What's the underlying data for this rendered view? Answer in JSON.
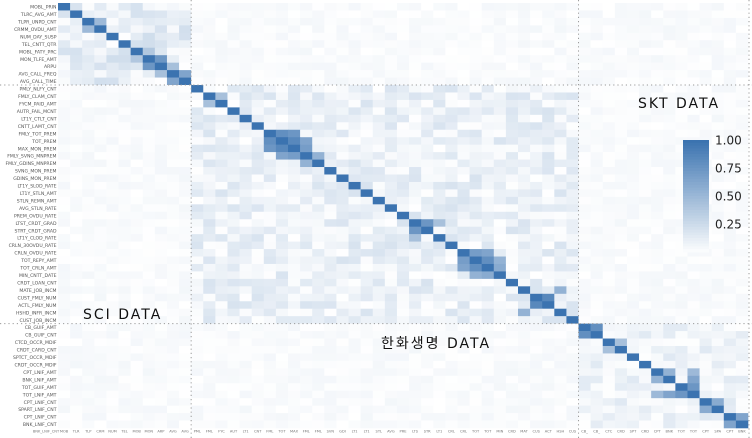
{
  "chart_data": {
    "type": "heatmap",
    "title": "",
    "xlabel": "",
    "ylabel": "",
    "row_labels": [
      "MOBL_PRIN",
      "TLRC_AVG_AMT",
      "TLPR_UNPD_CNT",
      "CRMM_OVDU_AMT",
      "NUM_DAY_SUSP",
      "TEL_CNTT_QTR",
      "MOBL_FATY_PRC",
      "MON_TLFE_AMT",
      "ARPU",
      "AVG_CALL_FREQ",
      "AVG_CALL_TIME",
      "PMLY_NLFY_CNT",
      "FMLY_CLAM_CNT",
      "FYCM_PAID_AMT",
      "AUTR_FAIL_MCNT",
      "LT1Y_CTLT_CNT",
      "CNTT_LAMT_CNT",
      "FMLY_TOT_PREM",
      "TOT_PREM",
      "MAX_MON_PREM",
      "FMLY_SVNG_MNPREM",
      "FMLY_GDINS_MNPREM",
      "SVNG_MON_PREM",
      "GDINS_MON_PREM",
      "LT1Y_SLOD_RATE",
      "LT1Y_STLN_AMT",
      "STLN_REMN_AMT",
      "AVG_STLN_RATE",
      "PREM_OVDU_RATE",
      "LTST_CRDT_GRAD",
      "STRT_CRDT_GRAD",
      "LT1Y_CLOD_RATE",
      "CRLN_30OVDU_RATE",
      "CRLN_OVDU_RATE",
      "TOT_REPY_AMT",
      "TOT_CRLN_AMT",
      "MIN_CNTT_DATE",
      "CRDT_LOAN_CNT",
      "MATE_JOB_INCM",
      "CUST_FMLY_NUM",
      "ACTL_FMLY_NUM",
      "HSHD_INFR_INCM",
      "CUST_JOB_INCM",
      "CB_GUIF_AMT",
      "CB_GUIF_CNT",
      "CTCD_OCCR_MDIF",
      "CRDT_CARD_CNT",
      "SPTCT_OCCR_MDIF",
      "CRDT_OCCR_MDIF",
      "CPT_LNIF_AMT",
      "BNK_LNIF_AMT",
      "TOT_GUIF_AMT",
      "TOT_LNIF_AMT",
      "CPT_LNIF_CNT",
      "SPART_LNIF_CNT",
      "CPT_LNIF_CNT",
      "BNK_LNIF_CNT"
    ],
    "x_tick_text": "BNK_LNIF_CNT",
    "value_range": [
      0,
      1
    ],
    "blocks": [
      {
        "name": "SKT DATA",
        "rows": [
          0,
          10
        ]
      },
      {
        "name": "한화생명 DATA",
        "rows": [
          11,
          42
        ]
      },
      {
        "name": "SCI DATA",
        "rows": [
          43,
          56
        ]
      }
    ],
    "strong_correlations": [
      {
        "a": 17,
        "b": 18,
        "value": 0.8
      },
      {
        "a": 17,
        "b": 19,
        "value": 0.75
      },
      {
        "a": 18,
        "b": 19,
        "value": 0.85
      },
      {
        "a": 19,
        "b": 20,
        "value": 0.7
      },
      {
        "a": 18,
        "b": 20,
        "value": 0.65
      },
      {
        "a": 20,
        "b": 21,
        "value": 0.55
      },
      {
        "a": 12,
        "b": 13,
        "value": 0.45
      },
      {
        "a": 33,
        "b": 34,
        "value": 0.7
      },
      {
        "a": 34,
        "b": 35,
        "value": 0.8
      },
      {
        "a": 33,
        "b": 35,
        "value": 0.65
      },
      {
        "a": 35,
        "b": 36,
        "value": 0.6
      },
      {
        "a": 34,
        "b": 36,
        "value": 0.55
      },
      {
        "a": 29,
        "b": 30,
        "value": 0.75
      },
      {
        "a": 29,
        "b": 31,
        "value": 0.45
      },
      {
        "a": 38,
        "b": 41,
        "value": 0.55
      },
      {
        "a": 39,
        "b": 40,
        "value": 0.85
      },
      {
        "a": 43,
        "b": 44,
        "value": 0.8
      },
      {
        "a": 45,
        "b": 46,
        "value": 0.45
      },
      {
        "a": 49,
        "b": 50,
        "value": 0.55
      },
      {
        "a": 50,
        "b": 52,
        "value": 0.65
      },
      {
        "a": 51,
        "b": 52,
        "value": 0.75
      },
      {
        "a": 49,
        "b": 52,
        "value": 0.5
      },
      {
        "a": 53,
        "b": 54,
        "value": 0.6
      },
      {
        "a": 55,
        "b": 56,
        "value": 0.65
      },
      {
        "a": 2,
        "b": 3,
        "value": 0.5
      },
      {
        "a": 7,
        "b": 8,
        "value": 0.75
      },
      {
        "a": 8,
        "b": 9,
        "value": 0.45
      },
      {
        "a": 9,
        "b": 10,
        "value": 0.65
      },
      {
        "a": 6,
        "b": 7,
        "value": 0.4
      }
    ],
    "block_strength": [
      0.12,
      0.1,
      0.08
    ],
    "legend": {
      "ticks": [
        {
          "label": "1.00",
          "value": 1.0
        },
        {
          "label": "0.75",
          "value": 0.75
        },
        {
          "label": "0.50",
          "value": 0.5
        },
        {
          "label": "0.25",
          "value": 0.25
        }
      ],
      "placement": "right",
      "color_low": "#ffffff",
      "color_high": "#3b73b0"
    },
    "grid": "dotted dividers between data blocks",
    "colors": {
      "divider": "#9a9a9a"
    }
  }
}
